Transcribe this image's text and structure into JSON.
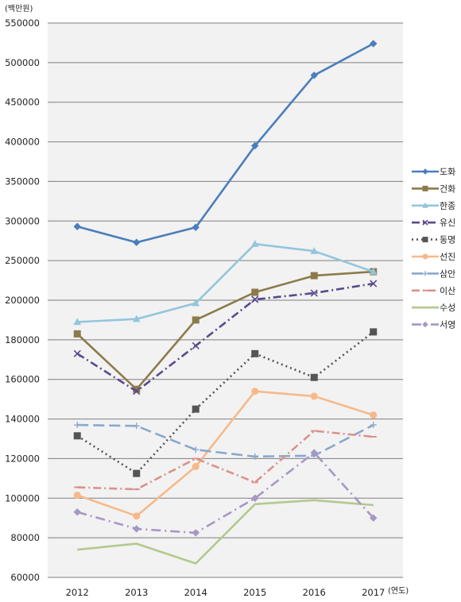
{
  "chart_data": {
    "type": "line",
    "title": "",
    "y_unit": "(백만원)",
    "x_unit": "(연도)",
    "x": [
      "2012",
      "2013",
      "2014",
      "2015",
      "2016",
      "2017"
    ],
    "y_ticks": [
      "60000",
      "80000",
      "100000",
      "120000",
      "140000",
      "160000",
      "180000",
      "200000",
      "250000",
      "300000",
      "350000",
      "400000",
      "450000",
      "500000",
      "550000"
    ],
    "grid": true,
    "legend": "right",
    "series": [
      {
        "name": "도화",
        "color": "#4a7ebb",
        "dash": "",
        "marker": "diamond",
        "values": [
          293000,
          273000,
          292000,
          395000,
          484000,
          524000
        ]
      },
      {
        "name": "건화",
        "color": "#8c7b4a",
        "dash": "",
        "marker": "square",
        "values": [
          183000,
          155000,
          190000,
          210000,
          231000,
          236000
        ]
      },
      {
        "name": "한종",
        "color": "#93c6dc",
        "dash": "",
        "marker": "triangle",
        "values": [
          189000,
          190500,
          198500,
          271000,
          262000,
          236000
        ]
      },
      {
        "name": "유신",
        "color": "#5a4a8c",
        "dash": "10,4,2,4",
        "marker": "x",
        "values": [
          173000,
          154000,
          177000,
          201000,
          209000,
          221000
        ]
      },
      {
        "name": "동명",
        "color": "#555555",
        "dash": "2,4",
        "marker": "square",
        "values": [
          131500,
          112500,
          145000,
          173000,
          161000,
          184000
        ]
      },
      {
        "name": "선진",
        "color": "#f7b98a",
        "dash": "",
        "marker": "circle",
        "values": [
          101500,
          91000,
          116000,
          154000,
          151500,
          142000
        ]
      },
      {
        "name": "삼안",
        "color": "#8aa8cc",
        "dash": "14,6",
        "marker": "plus",
        "values": [
          137000,
          136500,
          124500,
          121000,
          121500,
          137000
        ]
      },
      {
        "name": "이산",
        "color": "#d9928a",
        "dash": "10,4,2,4",
        "marker": "dash",
        "values": [
          105500,
          104500,
          120000,
          108000,
          134000,
          131000
        ]
      },
      {
        "name": "수성",
        "color": "#b3c98c",
        "dash": "",
        "marker": "none",
        "values": [
          74000,
          77000,
          67000,
          97000,
          99000,
          96500
        ]
      },
      {
        "name": "서영",
        "color": "#a797c4",
        "dash": "12,5,2,5",
        "marker": "diamond",
        "values": [
          93000,
          84500,
          82500,
          100000,
          123000,
          90000
        ]
      }
    ]
  }
}
